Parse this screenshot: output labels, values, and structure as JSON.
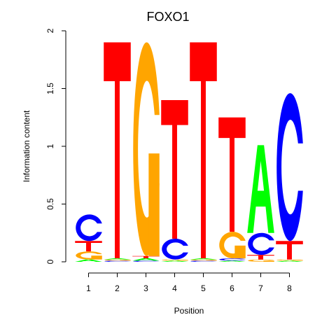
{
  "chart_data": {
    "type": "sequence-logo",
    "title": "FOXO1",
    "xlabel": "Position",
    "ylabel": "Information content",
    "ylim": [
      0,
      2
    ],
    "y_ticks": [
      "0",
      "0.5",
      "1",
      "1.5",
      "2"
    ],
    "x_ticks": [
      "1",
      "2",
      "3",
      "4",
      "5",
      "6",
      "7",
      "8"
    ],
    "grid": false,
    "legend": "none",
    "colors": {
      "A": "#00ff00",
      "C": "#0000ff",
      "G": "#ffa500",
      "T": "#ff0000"
    },
    "positions": [
      {
        "position": "1",
        "letters": [
          {
            "base": "A",
            "height": 0.02
          },
          {
            "base": "G",
            "height": 0.07
          },
          {
            "base": "T",
            "height": 0.09
          },
          {
            "base": "C",
            "height": 0.23
          }
        ]
      },
      {
        "position": "2",
        "letters": [
          {
            "base": "C",
            "height": 0.01
          },
          {
            "base": "G",
            "height": 0.01
          },
          {
            "base": "A",
            "height": 0.01
          },
          {
            "base": "T",
            "height": 1.87
          }
        ]
      },
      {
        "position": "3",
        "letters": [
          {
            "base": "C",
            "height": 0.01
          },
          {
            "base": "A",
            "height": 0.02
          },
          {
            "base": "T",
            "height": 0.02
          },
          {
            "base": "G",
            "height": 1.85
          }
        ]
      },
      {
        "position": "4",
        "letters": [
          {
            "base": "A",
            "height": 0.01
          },
          {
            "base": "G",
            "height": 0.01
          },
          {
            "base": "C",
            "height": 0.18
          },
          {
            "base": "T",
            "height": 1.2
          }
        ]
      },
      {
        "position": "5",
        "letters": [
          {
            "base": "C",
            "height": 0.01
          },
          {
            "base": "G",
            "height": 0.01
          },
          {
            "base": "A",
            "height": 0.01
          },
          {
            "base": "T",
            "height": 1.87
          }
        ]
      },
      {
        "position": "6",
        "letters": [
          {
            "base": "A",
            "height": 0.01
          },
          {
            "base": "C",
            "height": 0.02
          },
          {
            "base": "G",
            "height": 0.23
          },
          {
            "base": "T",
            "height": 0.99
          }
        ]
      },
      {
        "position": "7",
        "letters": [
          {
            "base": "G",
            "height": 0.02
          },
          {
            "base": "T",
            "height": 0.04
          },
          {
            "base": "C",
            "height": 0.19
          },
          {
            "base": "A",
            "height": 0.76
          }
        ]
      },
      {
        "position": "8",
        "letters": [
          {
            "base": "A",
            "height": 0.01
          },
          {
            "base": "G",
            "height": 0.01
          },
          {
            "base": "T",
            "height": 0.16
          },
          {
            "base": "C",
            "height": 1.28
          }
        ]
      }
    ]
  }
}
